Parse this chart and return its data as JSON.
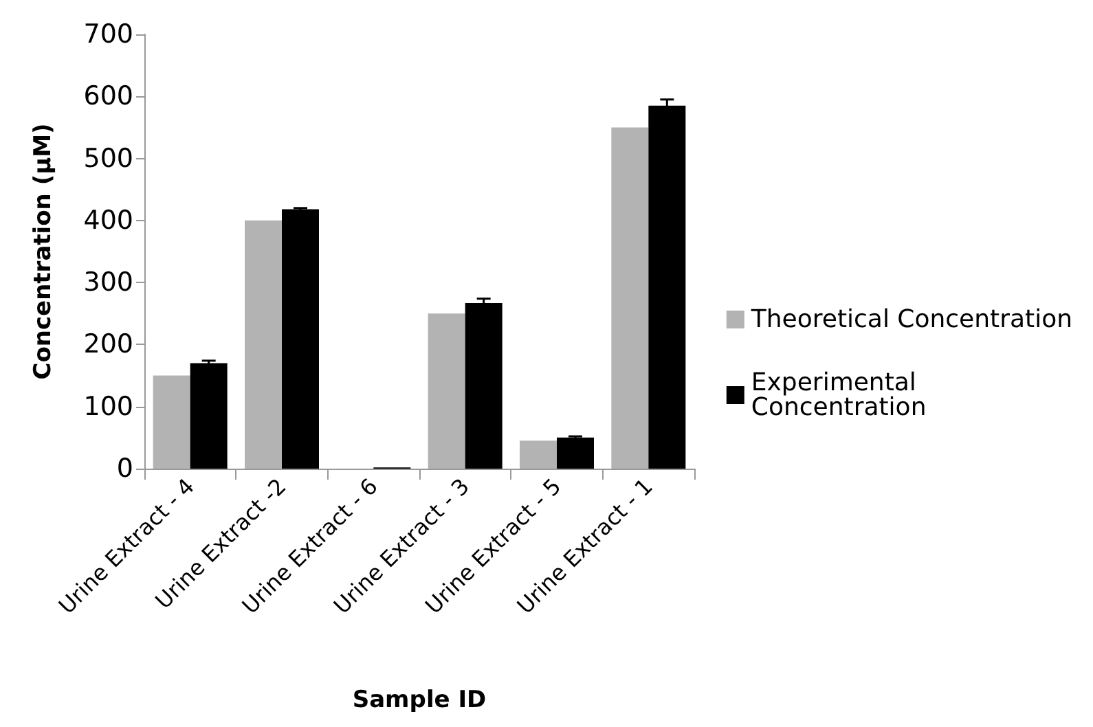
{
  "chart_data": {
    "type": "bar",
    "xlabel": "Sample ID",
    "ylabel": "Concentration (μM)",
    "categories": [
      "Urine Extract - 4",
      "Urine Extract -2",
      "Urine Extract - 6",
      "Urine Extract - 3",
      "Urine Extract - 5",
      "Urine Extract - 1"
    ],
    "series": [
      {
        "name": "Theoretical Concentration",
        "color": "#b3b3b3",
        "values": [
          150,
          400,
          0,
          250,
          45,
          550
        ]
      },
      {
        "name": "Experimental Concentration",
        "color": "#000000",
        "values": [
          170,
          418,
          2,
          267,
          50,
          585
        ],
        "errors": [
          4,
          2,
          null,
          7,
          2,
          10
        ]
      }
    ],
    "ylim": [
      0,
      700
    ],
    "yticks": [
      0,
      100,
      200,
      300,
      400,
      500,
      600,
      700
    ],
    "grid": false,
    "legend": "right"
  }
}
